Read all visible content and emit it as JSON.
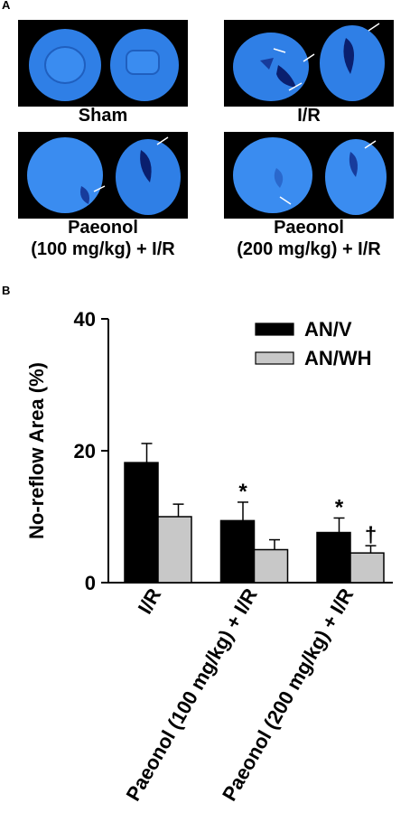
{
  "panel_a": {
    "letter": "A",
    "groups": [
      {
        "line1": "Sham",
        "line2": ""
      },
      {
        "line1": "I/R",
        "line2": ""
      },
      {
        "line1": "Paeonol",
        "line2": "(100 mg/kg) + I/R"
      },
      {
        "line1": "Paeonol",
        "line2": "(200 mg/kg) + I/R"
      }
    ]
  },
  "panel_b": {
    "letter": "B"
  },
  "colors": {
    "stain_blue": "#2f7fe6",
    "bar_black": "#000000",
    "bar_gray": "#c8c8c8"
  },
  "chart_data": {
    "type": "bar",
    "categories": [
      "I/R",
      "Paeonol (100 mg/kg) + I/R",
      "Paeonol (200 mg/kg) + I/R"
    ],
    "series": [
      {
        "name": "AN/V",
        "values": [
          18.2,
          9.4,
          7.6
        ],
        "errors": [
          2.9,
          2.8,
          2.2
        ],
        "markers": [
          "",
          "*",
          "*"
        ],
        "color": "#000000"
      },
      {
        "name": "AN/WH",
        "values": [
          10.0,
          5.0,
          4.5
        ],
        "errors": [
          1.9,
          1.5,
          1.1
        ],
        "markers": [
          "",
          "",
          "†"
        ],
        "color": "#c8c8c8"
      }
    ],
    "ylabel": "No-reflow Area (%)",
    "ylim": [
      0,
      40
    ],
    "yticks": [
      0,
      20,
      40
    ],
    "legend_position": "top-right",
    "grid": false
  }
}
